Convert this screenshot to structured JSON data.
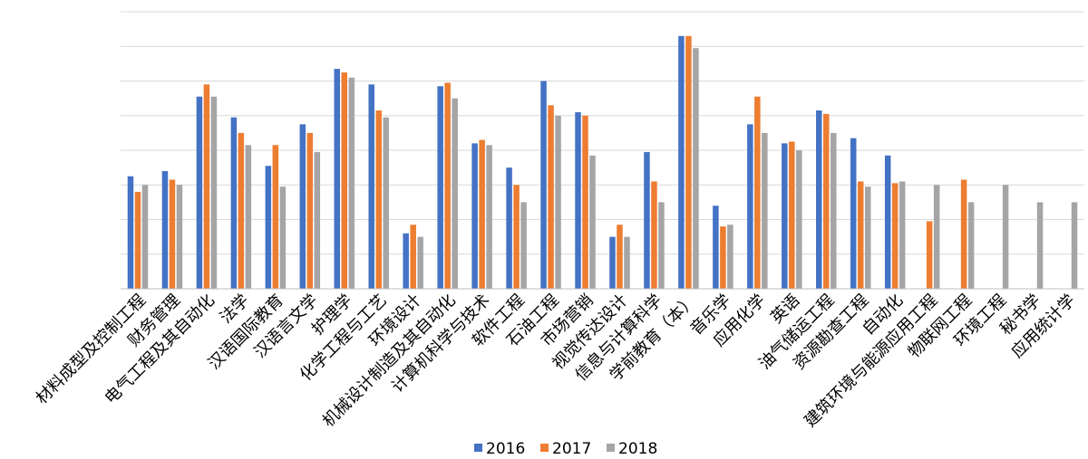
{
  "chart_data": {
    "type": "bar",
    "title": "",
    "xlabel": "",
    "ylabel": "",
    "ylim": [
      0,
      8
    ],
    "grid": true,
    "legend_placement": "bottom",
    "categories": [
      "材料成型及控制工程",
      "财务管理",
      "电气工程及其自动化",
      "法学",
      "汉语国际教育",
      "汉语言文学",
      "护理学",
      "化学工程与工艺",
      "环境设计",
      "机械设计制造及其自动化",
      "计算机科学与技术",
      "软件工程",
      "石油工程",
      "市场营销",
      "视觉传达设计",
      "信息与计算科学",
      "学前教育（本）",
      "音乐学",
      "应用化学",
      "英语",
      "油气储运工程",
      "资源勘查工程",
      "自动化",
      "建筑环境与能源应用工程",
      "物联网工程",
      "环境工程",
      "秘书学",
      "应用统计学"
    ],
    "series": [
      {
        "name": "2016",
        "color": "#4472C4",
        "values": [
          3.25,
          3.4,
          5.55,
          4.95,
          3.55,
          4.75,
          6.35,
          5.9,
          1.6,
          5.85,
          4.2,
          3.5,
          6.0,
          5.1,
          1.5,
          3.95,
          7.3,
          2.4,
          4.75,
          4.2,
          5.15,
          4.35,
          3.85,
          null,
          null,
          null,
          null,
          null
        ]
      },
      {
        "name": "2017",
        "color": "#ED7D31",
        "values": [
          2.8,
          3.15,
          5.9,
          4.5,
          4.15,
          4.5,
          6.25,
          5.15,
          1.85,
          5.95,
          4.3,
          3.0,
          5.3,
          5.0,
          1.85,
          3.1,
          7.3,
          1.8,
          5.55,
          4.25,
          5.05,
          3.1,
          3.05,
          1.95,
          3.15,
          null,
          null,
          null
        ]
      },
      {
        "name": "2018",
        "color": "#A5A5A5",
        "values": [
          3.0,
          3.0,
          5.55,
          4.15,
          2.95,
          3.95,
          6.1,
          4.95,
          1.5,
          5.5,
          4.15,
          2.5,
          5.0,
          3.85,
          1.5,
          2.5,
          6.95,
          1.85,
          4.5,
          4.0,
          4.5,
          2.95,
          3.1,
          3.0,
          2.5,
          3.0,
          2.5,
          2.5
        ]
      }
    ]
  }
}
